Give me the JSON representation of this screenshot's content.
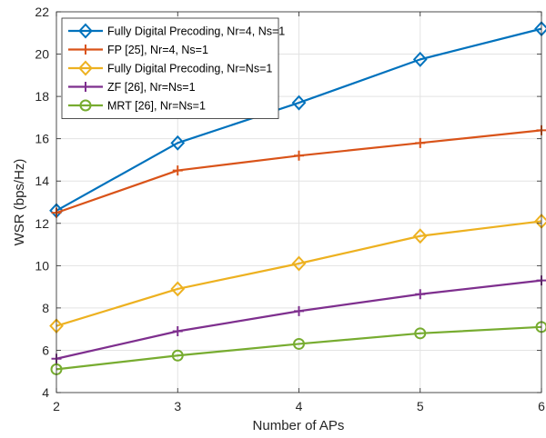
{
  "chart_data": {
    "type": "line",
    "title": "",
    "xlabel": "Number of APs",
    "ylabel": "WSR (bps/Hz)",
    "x": [
      2,
      3,
      4,
      5,
      6
    ],
    "xlim": [
      2,
      6
    ],
    "ylim": [
      4,
      22
    ],
    "xticks": [
      "2",
      "3",
      "4",
      "5",
      "6"
    ],
    "yticks": [
      "4",
      "6",
      "8",
      "10",
      "12",
      "14",
      "16",
      "18",
      "20",
      "22"
    ],
    "grid": true,
    "legend_position": "top-left",
    "series": [
      {
        "name": "Fully Digital Precoding, Nr=4, Ns=1",
        "values": [
          12.6,
          15.8,
          17.7,
          19.75,
          21.2
        ],
        "color": "#0072BD",
        "marker": "diamond"
      },
      {
        "name": "FP [25], Nr=4, Ns=1",
        "values": [
          12.5,
          14.5,
          15.2,
          15.8,
          16.4
        ],
        "color": "#D95319",
        "marker": "plus"
      },
      {
        "name": "Fully Digital Precoding, Nr=Ns=1",
        "values": [
          7.15,
          8.9,
          10.1,
          11.4,
          12.1
        ],
        "color": "#EDB120",
        "marker": "diamond"
      },
      {
        "name": "ZF [26], Nr=Ns=1",
        "values": [
          5.6,
          6.9,
          7.85,
          8.65,
          9.3
        ],
        "color": "#7E2F8E",
        "marker": "plus"
      },
      {
        "name": "MRT [26], Nr=Ns=1",
        "values": [
          5.1,
          5.75,
          6.3,
          6.8,
          7.1
        ],
        "color": "#77AC30",
        "marker": "circle"
      }
    ]
  }
}
